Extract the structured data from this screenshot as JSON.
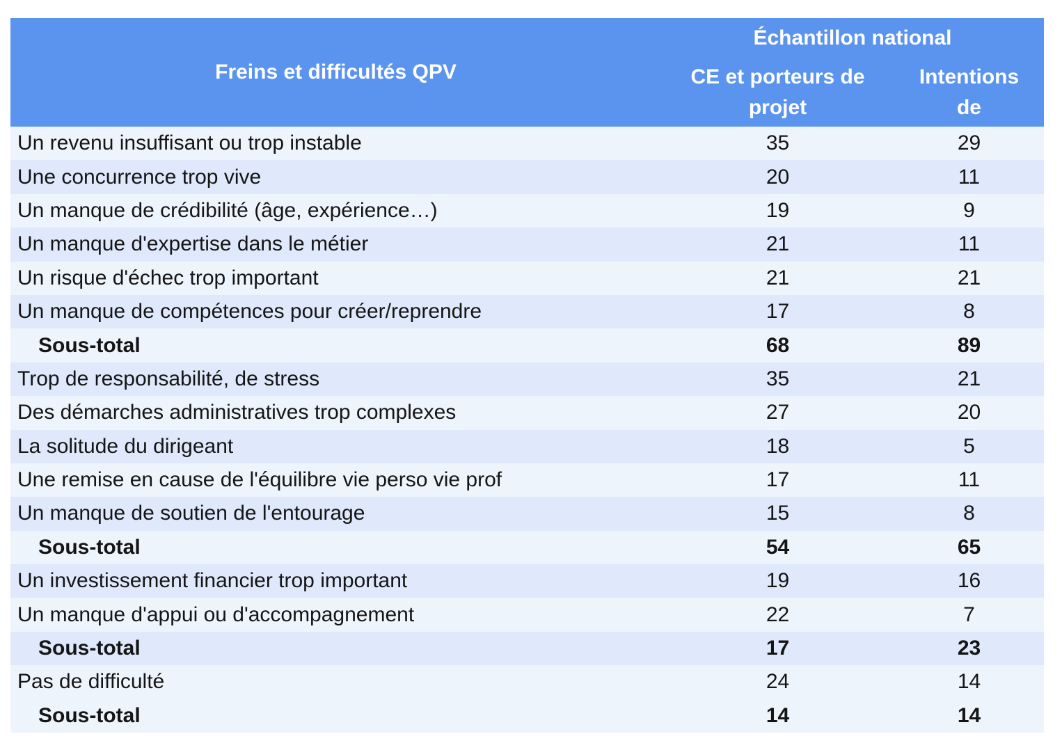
{
  "colors": {
    "header_bg": "#5b94ee",
    "header_text": "#ffffff",
    "row_light": "#eef4fc",
    "row_dark": "#dfe9fb",
    "body_text": "#151515"
  },
  "chart_data": {
    "type": "table",
    "header": {
      "title": "Freins et difficultés QPV",
      "group": "Échantillon national",
      "col_ce": "CE et porteurs de projet",
      "col_int": "Intentions de"
    },
    "rows": [
      {
        "label": "Un revenu insuffisant ou trop instable",
        "ce": 35,
        "intentions": 29,
        "subtotal": false,
        "shade": "light"
      },
      {
        "label": "Une concurrence trop vive",
        "ce": 20,
        "intentions": 11,
        "subtotal": false,
        "shade": "dark"
      },
      {
        "label": "Un manque de crédibilité (âge, expérience…)",
        "ce": 19,
        "intentions": 9,
        "subtotal": false,
        "shade": "light"
      },
      {
        "label": "Un manque d'expertise dans le métier",
        "ce": 21,
        "intentions": 11,
        "subtotal": false,
        "shade": "dark"
      },
      {
        "label": "Un risque d'échec trop important",
        "ce": 21,
        "intentions": 21,
        "subtotal": false,
        "shade": "light"
      },
      {
        "label": "Un manque de compétences pour créer/reprendre",
        "ce": 17,
        "intentions": 8,
        "subtotal": false,
        "shade": "dark"
      },
      {
        "label": "Sous-total",
        "ce": 68,
        "intentions": 89,
        "subtotal": true,
        "shade": "light"
      },
      {
        "label": "Trop de responsabilité, de stress",
        "ce": 35,
        "intentions": 21,
        "subtotal": false,
        "shade": "dark"
      },
      {
        "label": "Des démarches administratives trop complexes",
        "ce": 27,
        "intentions": 20,
        "subtotal": false,
        "shade": "light"
      },
      {
        "label": "La solitude du dirigeant",
        "ce": 18,
        "intentions": 5,
        "subtotal": false,
        "shade": "dark"
      },
      {
        "label": "Une remise en cause de l'équilibre vie perso vie prof",
        "ce": 17,
        "intentions": 11,
        "subtotal": false,
        "shade": "light"
      },
      {
        "label": "Un manque de soutien de l'entourage",
        "ce": 15,
        "intentions": 8,
        "subtotal": false,
        "shade": "dark"
      },
      {
        "label": "Sous-total",
        "ce": 54,
        "intentions": 65,
        "subtotal": true,
        "shade": "light"
      },
      {
        "label": "Un investissement financier trop important",
        "ce": 19,
        "intentions": 16,
        "subtotal": false,
        "shade": "dark"
      },
      {
        "label": "Un manque d'appui ou d'accompagnement",
        "ce": 22,
        "intentions": 7,
        "subtotal": false,
        "shade": "light"
      },
      {
        "label": "Sous-total",
        "ce": 17,
        "intentions": 23,
        "subtotal": true,
        "shade": "dark"
      },
      {
        "label": "Pas de difficulté",
        "ce": 24,
        "intentions": 14,
        "subtotal": false,
        "shade": "light"
      },
      {
        "label": "Sous-total",
        "ce": 14,
        "intentions": 14,
        "subtotal": true,
        "shade": "light"
      }
    ]
  }
}
